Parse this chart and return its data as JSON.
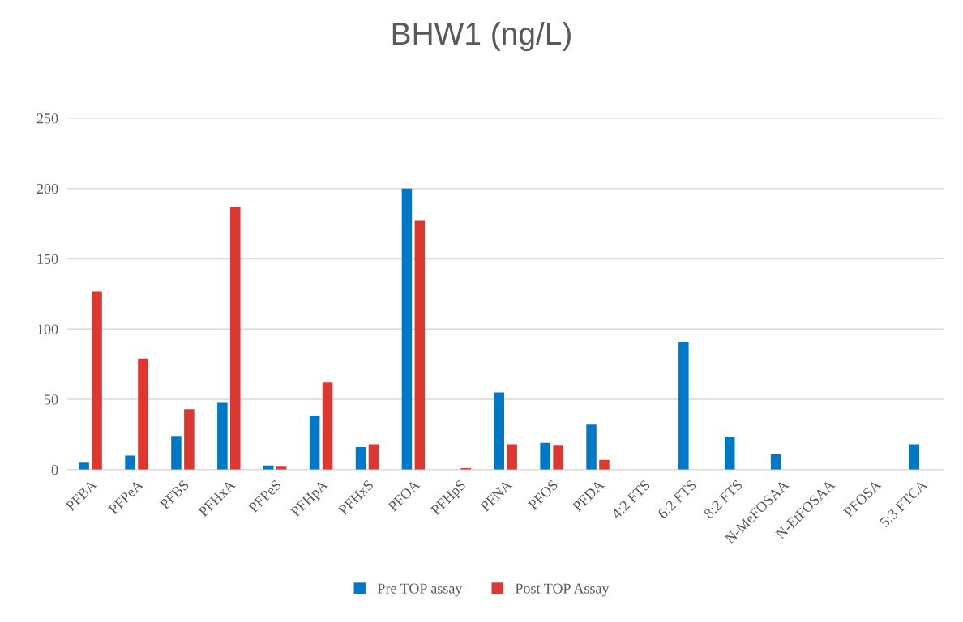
{
  "chart_data": {
    "type": "bar",
    "title": "BHW1 (ng/L)",
    "categories": [
      "PFBA",
      "PFPeA",
      "PFBS",
      "PFHxA",
      "PFPeS",
      "PFHpA",
      "PFHxS",
      "PFOA",
      "PFHpS",
      "PFNA",
      "PFOS",
      "PFDA",
      "4:2 FTS",
      "6:2 FTS",
      "8:2 FTS",
      "N-MeFOSAA",
      "N-EtFOSAA",
      "PFOSA",
      "5:3 FTCA"
    ],
    "series": [
      {
        "name": "Pre TOP assay",
        "color": "#0078c8",
        "values": [
          5,
          10,
          24,
          48,
          3,
          38,
          16,
          200,
          null,
          55,
          19,
          32,
          null,
          91,
          23,
          11,
          null,
          null,
          18
        ]
      },
      {
        "name": "Post TOP Assay",
        "color": "#dc3730",
        "values": [
          127,
          79,
          43,
          187,
          2,
          62,
          18,
          177,
          1,
          18,
          17,
          7,
          null,
          null,
          null,
          null,
          null,
          null,
          null
        ]
      }
    ],
    "ylim": [
      0,
      250
    ],
    "yticks": [
      0,
      50,
      100,
      150,
      200,
      250
    ],
    "grid": "y",
    "legend": "bottom"
  }
}
